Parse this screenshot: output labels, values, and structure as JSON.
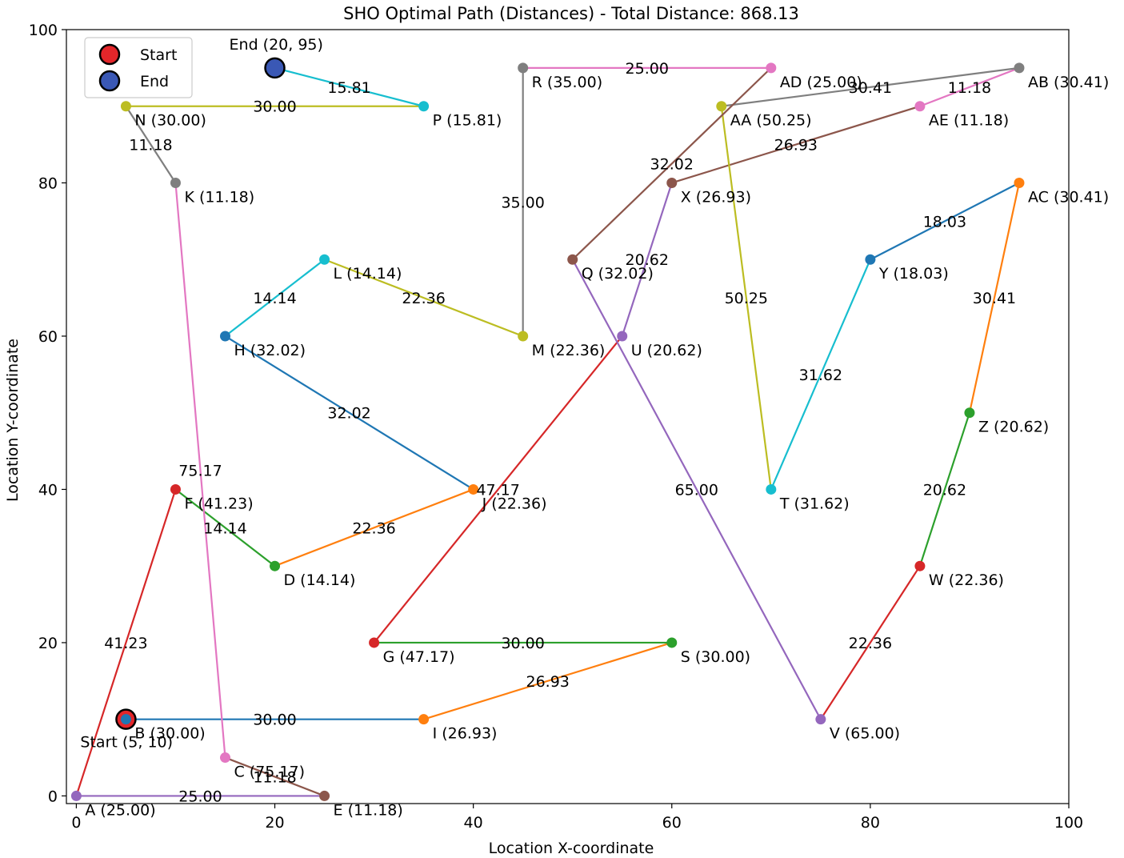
{
  "chart_data": {
    "type": "line",
    "title": "SHO Optimal Path (Distances) - Total Distance: 868.13",
    "xlabel": "Location X-coordinate",
    "ylabel": "Location Y-coordinate",
    "xlim": [
      -1,
      100
    ],
    "ylim": [
      -1,
      100
    ],
    "xticks": [
      0,
      20,
      40,
      60,
      80,
      100
    ],
    "yticks": [
      0,
      20,
      40,
      60,
      80,
      100
    ],
    "legend": {
      "position": "top-left",
      "entries": [
        {
          "label": "Start",
          "color": "#e3262a"
        },
        {
          "label": "End",
          "color": "#3a58b5"
        }
      ]
    },
    "start": {
      "x": 5,
      "y": 10,
      "label": "Start (5, 10)",
      "color": "#e3262a"
    },
    "end": {
      "x": 20,
      "y": 95,
      "label": "End (20, 95)",
      "color": "#3a58b5"
    },
    "points": [
      {
        "name": "A",
        "x": 0,
        "y": 0,
        "label": "A (25.00)"
      },
      {
        "name": "B",
        "x": 5,
        "y": 10,
        "label": "B (30.00)"
      },
      {
        "name": "C",
        "x": 15,
        "y": 5,
        "label": "C (75.17)"
      },
      {
        "name": "D",
        "x": 20,
        "y": 30,
        "label": "D (14.14)"
      },
      {
        "name": "E",
        "x": 25,
        "y": 0,
        "label": "E (11.18)"
      },
      {
        "name": "F",
        "x": 10,
        "y": 40,
        "label": "F (41.23)"
      },
      {
        "name": "G",
        "x": 30,
        "y": 20,
        "label": "G (47.17)"
      },
      {
        "name": "H",
        "x": 15,
        "y": 60,
        "label": "H (32.02)"
      },
      {
        "name": "I",
        "x": 35,
        "y": 10,
        "label": "I (26.93)"
      },
      {
        "name": "J",
        "x": 40,
        "y": 40,
        "label": "J (22.36)"
      },
      {
        "name": "K",
        "x": 10,
        "y": 80,
        "label": "K (11.18)"
      },
      {
        "name": "L",
        "x": 25,
        "y": 70,
        "label": "L (14.14)"
      },
      {
        "name": "M",
        "x": 45,
        "y": 60,
        "label": "M (22.36)"
      },
      {
        "name": "N",
        "x": 5,
        "y": 90,
        "label": "N (30.00)"
      },
      {
        "name": "P",
        "x": 35,
        "y": 90,
        "label": "P (15.81)"
      },
      {
        "name": "Q",
        "x": 50,
        "y": 70,
        "label": "Q (32.02)"
      },
      {
        "name": "R",
        "x": 45,
        "y": 95,
        "label": "R (35.00)"
      },
      {
        "name": "S",
        "x": 60,
        "y": 20,
        "label": "S (30.00)"
      },
      {
        "name": "T",
        "x": 70,
        "y": 40,
        "label": "T (31.62)"
      },
      {
        "name": "U",
        "x": 55,
        "y": 60,
        "label": "U (20.62)"
      },
      {
        "name": "V",
        "x": 75,
        "y": 10,
        "label": "V (65.00)"
      },
      {
        "name": "W",
        "x": 85,
        "y": 30,
        "label": "W (22.36)"
      },
      {
        "name": "X",
        "x": 60,
        "y": 80,
        "label": "X (26.93)"
      },
      {
        "name": "Y",
        "x": 80,
        "y": 70,
        "label": "Y (18.03)"
      },
      {
        "name": "Z",
        "x": 90,
        "y": 50,
        "label": "Z (20.62)"
      },
      {
        "name": "AA",
        "x": 65,
        "y": 90,
        "label": "AA (50.25)"
      },
      {
        "name": "AB",
        "x": 95,
        "y": 95,
        "label": "AB (30.41)"
      },
      {
        "name": "AC",
        "x": 95,
        "y": 80,
        "label": "AC (30.41)"
      },
      {
        "name": "AD",
        "x": 70,
        "y": 95,
        "label": "AD (25.00)"
      },
      {
        "name": "AE",
        "x": 85,
        "y": 90,
        "label": "AE (11.18)"
      }
    ],
    "segments": [
      {
        "from": [
          5,
          10
        ],
        "to": [
          35,
          10
        ],
        "distance": "30.00",
        "color": "#1f77b4"
      },
      {
        "from": [
          35,
          10
        ],
        "to": [
          60,
          20
        ],
        "distance": "26.93",
        "color": "#ff7f0e"
      },
      {
        "from": [
          60,
          20
        ],
        "to": [
          30,
          20
        ],
        "distance": "30.00",
        "color": "#2ca02c"
      },
      {
        "from": [
          30,
          20
        ],
        "to": [
          55,
          60
        ],
        "distance": "47.17",
        "color": "#d62728"
      },
      {
        "from": [
          55,
          60
        ],
        "to": [
          60,
          80
        ],
        "distance": "20.62",
        "color": "#9467bd"
      },
      {
        "from": [
          60,
          80
        ],
        "to": [
          85,
          90
        ],
        "distance": "26.93",
        "color": "#8c564b"
      },
      {
        "from": [
          85,
          90
        ],
        "to": [
          95,
          95
        ],
        "distance": "11.18",
        "color": "#e377c2"
      },
      {
        "from": [
          95,
          95
        ],
        "to": [
          65,
          90
        ],
        "distance": "30.41",
        "color": "#7f7f7f"
      },
      {
        "from": [
          65,
          90
        ],
        "to": [
          70,
          40
        ],
        "distance": "50.25",
        "color": "#bcbd22"
      },
      {
        "from": [
          70,
          40
        ],
        "to": [
          80,
          70
        ],
        "distance": "31.62",
        "color": "#17becf"
      },
      {
        "from": [
          80,
          70
        ],
        "to": [
          95,
          80
        ],
        "distance": "18.03",
        "color": "#1f77b4"
      },
      {
        "from": [
          95,
          80
        ],
        "to": [
          90,
          50
        ],
        "distance": "30.41",
        "color": "#ff7f0e"
      },
      {
        "from": [
          90,
          50
        ],
        "to": [
          85,
          30
        ],
        "distance": "20.62",
        "color": "#2ca02c"
      },
      {
        "from": [
          85,
          30
        ],
        "to": [
          75,
          10
        ],
        "distance": "22.36",
        "color": "#d62728"
      },
      {
        "from": [
          75,
          10
        ],
        "to": [
          50,
          70
        ],
        "distance": "65.00",
        "color": "#9467bd"
      },
      {
        "from": [
          50,
          70
        ],
        "to": [
          70,
          95
        ],
        "distance": "32.02",
        "color": "#8c564b"
      },
      {
        "from": [
          70,
          95
        ],
        "to": [
          45,
          95
        ],
        "distance": "25.00",
        "color": "#e377c2"
      },
      {
        "from": [
          45,
          95
        ],
        "to": [
          45,
          60
        ],
        "distance": "35.00",
        "color": "#7f7f7f"
      },
      {
        "from": [
          45,
          60
        ],
        "to": [
          25,
          70
        ],
        "distance": "22.36",
        "color": "#bcbd22"
      },
      {
        "from": [
          25,
          70
        ],
        "to": [
          15,
          60
        ],
        "distance": "14.14",
        "color": "#17becf"
      },
      {
        "from": [
          15,
          60
        ],
        "to": [
          40,
          40
        ],
        "distance": "32.02",
        "color": "#1f77b4"
      },
      {
        "from": [
          40,
          40
        ],
        "to": [
          20,
          30
        ],
        "distance": "22.36",
        "color": "#ff7f0e"
      },
      {
        "from": [
          20,
          30
        ],
        "to": [
          10,
          40
        ],
        "distance": "14.14",
        "color": "#2ca02c"
      },
      {
        "from": [
          10,
          40
        ],
        "to": [
          0,
          0
        ],
        "distance": "41.23",
        "color": "#d62728"
      },
      {
        "from": [
          0,
          0
        ],
        "to": [
          25,
          0
        ],
        "distance": "25.00",
        "color": "#9467bd"
      },
      {
        "from": [
          25,
          0
        ],
        "to": [
          15,
          5
        ],
        "distance": "11.18",
        "color": "#8c564b"
      },
      {
        "from": [
          15,
          5
        ],
        "to": [
          10,
          80
        ],
        "distance": "75.17",
        "color": "#e377c2"
      },
      {
        "from": [
          10,
          80
        ],
        "to": [
          5,
          90
        ],
        "distance": "11.18",
        "color": "#7f7f7f"
      },
      {
        "from": [
          5,
          90
        ],
        "to": [
          35,
          90
        ],
        "distance": "30.00",
        "color": "#bcbd22"
      },
      {
        "from": [
          35,
          90
        ],
        "to": [
          20,
          95
        ],
        "distance": "15.81",
        "color": "#17becf"
      }
    ]
  }
}
